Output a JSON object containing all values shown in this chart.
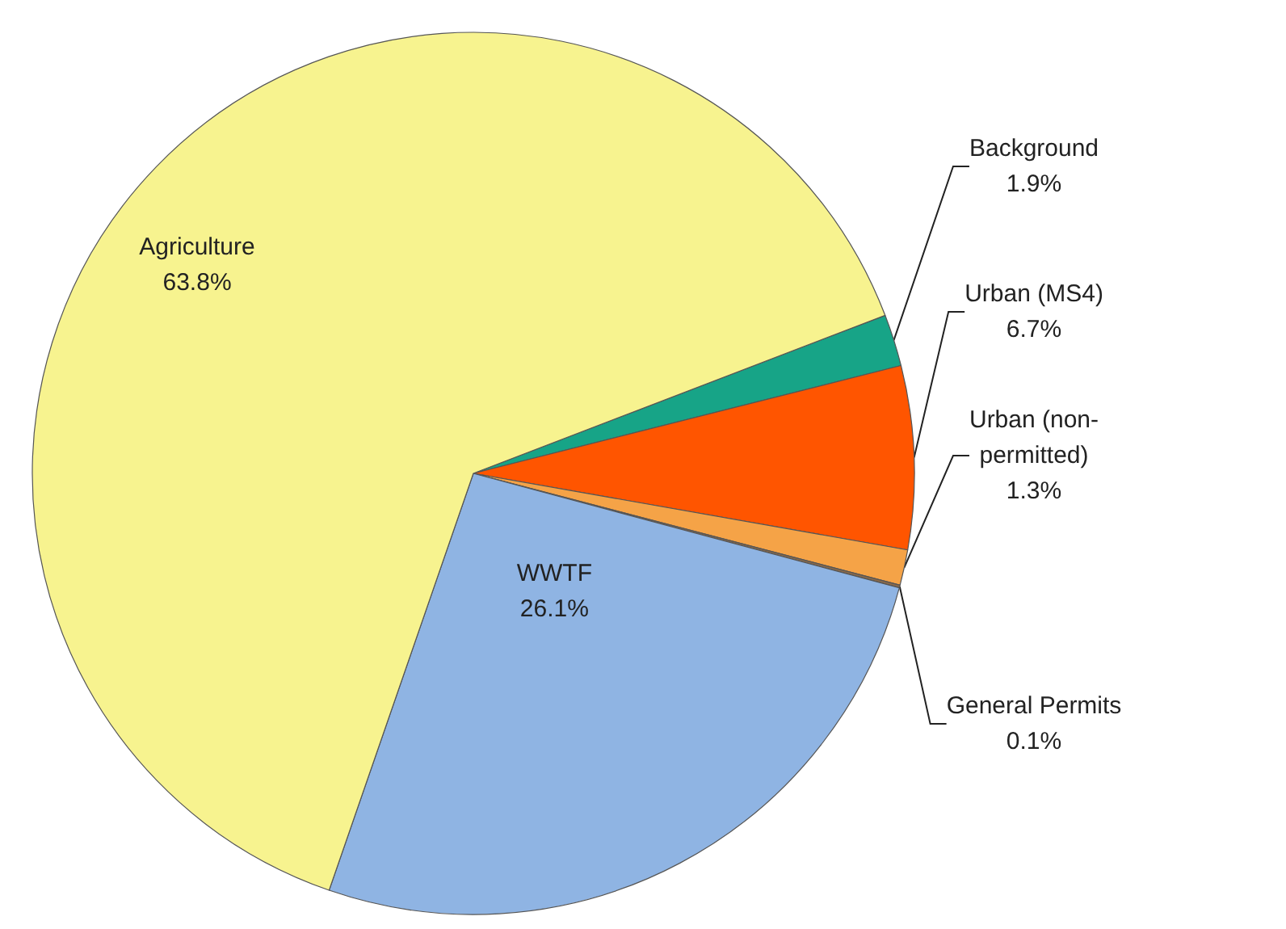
{
  "chart_data": {
    "type": "pie",
    "categories": [
      "Background",
      "Urban (MS4)",
      "Urban (non-permitted)",
      "General Permits",
      "WWTF",
      "Agriculture"
    ],
    "values": [
      1.9,
      6.7,
      1.3,
      0.1,
      26.1,
      63.8
    ],
    "value_labels": [
      "1.9%",
      "6.7%",
      "1.3%",
      "0.1%",
      "26.1%",
      "63.8%"
    ],
    "colors": [
      "#17a487",
      "#ff5500",
      "#f5a347",
      "#8a6a4a",
      "#8fb4e3",
      "#f7f38f"
    ],
    "legend": false
  }
}
